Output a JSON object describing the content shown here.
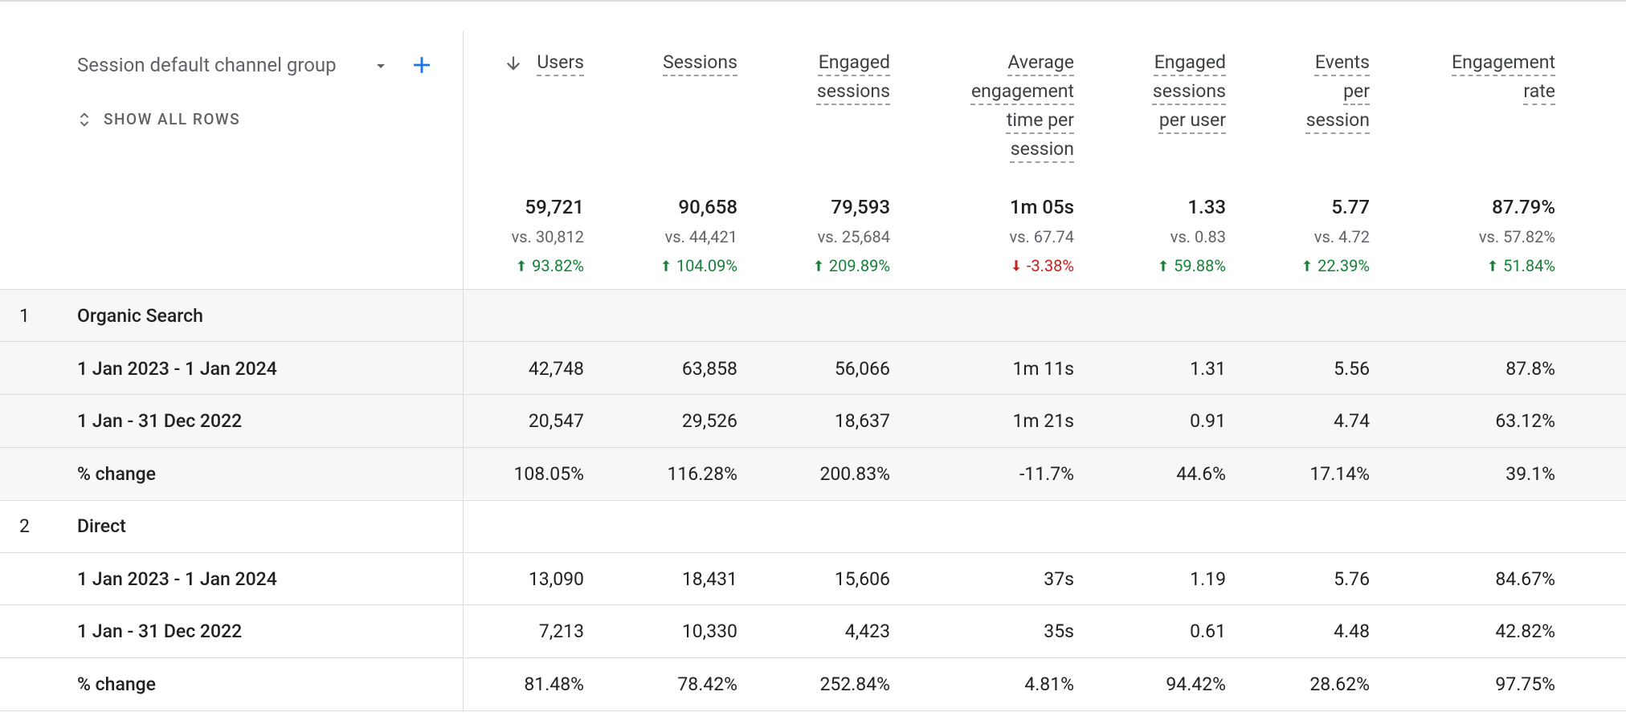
{
  "dimension_label": "Session default channel group",
  "show_all_rows": "SHOW ALL ROWS",
  "columns": [
    "Users",
    "Sessions",
    "Engaged sessions",
    "Average engagement time per session",
    "Engaged sessions per user",
    "Events per session",
    "Engagement rate"
  ],
  "totals": [
    {
      "value": "59,721",
      "compare": "vs. 30,812",
      "change": "93.82%",
      "trend": "up"
    },
    {
      "value": "90,658",
      "compare": "vs. 44,421",
      "change": "104.09%",
      "trend": "up"
    },
    {
      "value": "79,593",
      "compare": "vs. 25,684",
      "change": "209.89%",
      "trend": "up"
    },
    {
      "value": "1m 05s",
      "compare": "vs. 67.74",
      "change": "-3.38%",
      "trend": "down"
    },
    {
      "value": "1.33",
      "compare": "vs. 0.83",
      "change": "59.88%",
      "trend": "up"
    },
    {
      "value": "5.77",
      "compare": "vs. 4.72",
      "change": "22.39%",
      "trend": "up"
    },
    {
      "value": "87.79%",
      "compare": "vs. 57.82%",
      "change": "51.84%",
      "trend": "up"
    }
  ],
  "groups": [
    {
      "index": "1",
      "name": "Organic Search",
      "rows": [
        {
          "label": "1 Jan 2023 - 1 Jan 2024",
          "cells": [
            "42,748",
            "63,858",
            "56,066",
            "1m 11s",
            "1.31",
            "5.56",
            "87.8%"
          ]
        },
        {
          "label": "1 Jan - 31 Dec 2022",
          "cells": [
            "20,547",
            "29,526",
            "18,637",
            "1m 21s",
            "0.91",
            "4.74",
            "63.12%"
          ]
        },
        {
          "label": "% change",
          "cells": [
            "108.05%",
            "116.28%",
            "200.83%",
            "-11.7%",
            "44.6%",
            "17.14%",
            "39.1%"
          ]
        }
      ]
    },
    {
      "index": "2",
      "name": "Direct",
      "rows": [
        {
          "label": "1 Jan 2023 - 1 Jan 2024",
          "cells": [
            "13,090",
            "18,431",
            "15,606",
            "37s",
            "1.19",
            "5.76",
            "84.67%"
          ]
        },
        {
          "label": "1 Jan - 31 Dec 2022",
          "cells": [
            "7,213",
            "10,330",
            "4,423",
            "35s",
            "0.61",
            "4.48",
            "42.82%"
          ]
        },
        {
          "label": "% change",
          "cells": [
            "81.48%",
            "78.42%",
            "252.84%",
            "4.81%",
            "94.42%",
            "28.62%",
            "97.75%"
          ]
        }
      ]
    }
  ]
}
